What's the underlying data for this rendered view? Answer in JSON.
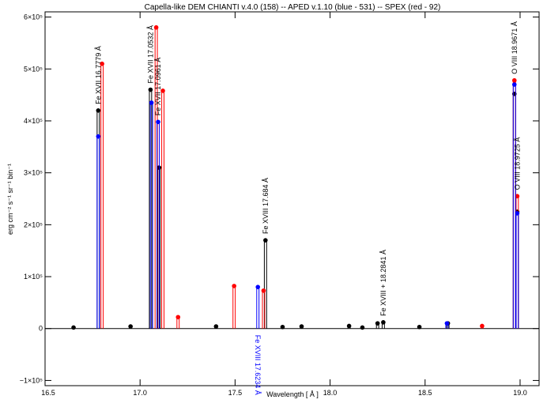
{
  "chart_data": {
    "type": "spectrum",
    "title": "Capella-like DEM  CHIANTI v.4.0 (158) -- APED v.1.10 (blue - 531) -- SPEX (red - 92)",
    "x_label": "Wavelength [ Å ]",
    "y_label": "erg cm⁻² s⁻¹ sr⁻¹ bin⁻¹",
    "xlim": [
      16.5,
      19.1
    ],
    "ylim": [
      -110000,
      610000
    ],
    "xticks": [
      {
        "value": 16.5,
        "label": "16.5"
      },
      {
        "value": 17,
        "label": "17.0"
      },
      {
        "value": 17.5,
        "label": "17.5"
      },
      {
        "value": 18,
        "label": "18.0"
      },
      {
        "value": 18.5,
        "label": "18.5"
      },
      {
        "value": 19,
        "label": "19.0"
      }
    ],
    "yticks": [
      {
        "value": -100000,
        "label": "−1×10⁵"
      },
      0,
      {
        "value": 100000,
        "label": "1×10⁵"
      },
      {
        "value": 200000,
        "label": "2×10⁵"
      },
      {
        "value": 300000,
        "label": "3×10⁵"
      },
      {
        "value": 400000,
        "label": "4×10⁵"
      },
      {
        "value": 500000,
        "label": "5×10⁵"
      },
      {
        "value": 600000,
        "label": "6×10⁵"
      }
    ],
    "series": [
      {
        "name": "CHIANTI",
        "color": "#000000",
        "x": [
          16.65,
          16.78,
          16.95,
          17.055,
          17.1,
          17.4,
          17.66,
          17.75,
          17.85,
          18.1,
          18.17,
          18.25,
          18.28,
          18.47,
          18.62,
          18.97,
          18.985
        ],
        "values": [
          2000,
          420000,
          4000,
          460000,
          310000,
          4000,
          170000,
          3000,
          4000,
          5000,
          2000,
          10000,
          12000,
          3000,
          10000,
          452000,
          225000
        ]
      },
      {
        "name": "SPEX",
        "color": "#ff0000",
        "x": [
          16.8,
          17.085,
          17.12,
          17.2,
          17.495,
          17.65,
          18.8,
          18.97,
          18.985
        ],
        "values": [
          510000,
          580000,
          458000,
          22000,
          82000,
          73000,
          5000,
          478000,
          255000
        ]
      },
      {
        "name": "APED",
        "color": "#0000ff",
        "x": [
          16.78,
          17.06,
          17.095,
          17.62,
          18.615,
          18.97,
          18.985
        ],
        "values": [
          370000,
          435000,
          398000,
          80000,
          10000,
          470000,
          222000
        ]
      }
    ],
    "annotations": [
      {
        "text": "Fe XVII 16.7779 Å",
        "series": 0,
        "index": 1,
        "color": "#000000",
        "placement": "above"
      },
      {
        "text": "Fe XVII 17.0532 Å",
        "series": 0,
        "index": 3,
        "color": "#000000",
        "placement": "above"
      },
      {
        "text": "Fe XVII 17.0961 Å",
        "series": 2,
        "index": 2,
        "color": "#000000",
        "placement": "above"
      },
      {
        "text": "Fe XVIII 17.6234 Å",
        "series": 2,
        "index": 3,
        "color": "#0000ff",
        "placement": "below"
      },
      {
        "text": "Fe XVIII 17.684 Å",
        "series": 0,
        "index": 6,
        "color": "#000000",
        "placement": "above"
      },
      {
        "text": "Fe XVIII + 18.2841 Å",
        "series": 0,
        "index": 12,
        "color": "#000000",
        "placement": "above"
      },
      {
        "text": "O VIII 18.9671 Å",
        "series": 1,
        "index": 7,
        "color": "#000000",
        "placement": "above"
      },
      {
        "text": "O VIII 18.9725 Å",
        "series": 1,
        "index": 8,
        "color": "#000000",
        "placement": "above"
      }
    ]
  }
}
